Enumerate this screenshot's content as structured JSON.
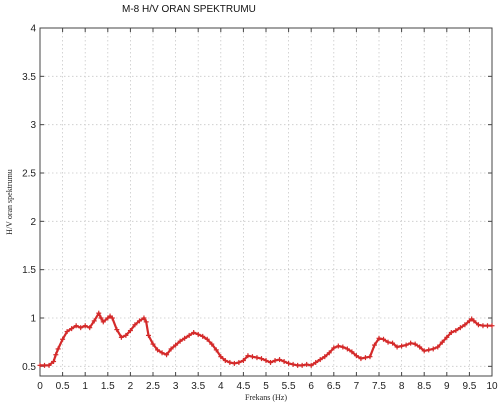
{
  "chart_data": {
    "type": "line",
    "title": "M-8 H/V ORAN SPEKTRUMU",
    "xlabel": "Frekans (Hz)",
    "ylabel": "H/V oran spektrumu",
    "xlim": [
      0,
      10
    ],
    "ylim": [
      0.4,
      4
    ],
    "xticks": [
      0,
      0.5,
      1,
      1.5,
      2,
      2.5,
      3,
      3.5,
      4,
      4.5,
      5,
      5.5,
      6,
      6.5,
      7,
      7.5,
      8,
      8.5,
      9,
      9.5,
      10
    ],
    "yticks": [
      0.5,
      1,
      1.5,
      2,
      2.5,
      3,
      3.5,
      4
    ],
    "grid": true,
    "series": [
      {
        "color": "#d42a2a",
        "marker": "plus",
        "x": [
          0.0,
          0.1,
          0.2,
          0.3,
          0.35,
          0.4,
          0.5,
          0.6,
          0.7,
          0.8,
          0.9,
          1.0,
          1.1,
          1.2,
          1.3,
          1.35,
          1.4,
          1.5,
          1.55,
          1.6,
          1.7,
          1.8,
          1.9,
          2.0,
          2.1,
          2.2,
          2.3,
          2.35,
          2.4,
          2.5,
          2.6,
          2.7,
          2.8,
          2.9,
          3.0,
          3.1,
          3.2,
          3.3,
          3.4,
          3.5,
          3.6,
          3.7,
          3.8,
          3.9,
          4.0,
          4.1,
          4.2,
          4.3,
          4.4,
          4.5,
          4.6,
          4.7,
          4.8,
          4.9,
          5.0,
          5.1,
          5.2,
          5.3,
          5.4,
          5.5,
          5.6,
          5.7,
          5.8,
          5.9,
          6.0,
          6.1,
          6.2,
          6.3,
          6.4,
          6.5,
          6.6,
          6.7,
          6.8,
          6.9,
          7.0,
          7.1,
          7.2,
          7.3,
          7.4,
          7.5,
          7.6,
          7.7,
          7.8,
          7.9,
          8.0,
          8.1,
          8.2,
          8.3,
          8.4,
          8.5,
          8.6,
          8.7,
          8.8,
          8.9,
          9.0,
          9.1,
          9.2,
          9.3,
          9.4,
          9.5,
          9.55,
          9.6,
          9.7,
          9.8,
          9.9,
          10.0
        ],
        "y": [
          0.51,
          0.51,
          0.51,
          0.55,
          0.62,
          0.68,
          0.78,
          0.86,
          0.89,
          0.92,
          0.9,
          0.92,
          0.9,
          0.97,
          1.05,
          1.0,
          0.96,
          1.0,
          1.02,
          1.0,
          0.88,
          0.8,
          0.82,
          0.87,
          0.93,
          0.97,
          1.0,
          0.96,
          0.82,
          0.73,
          0.67,
          0.64,
          0.62,
          0.68,
          0.72,
          0.76,
          0.79,
          0.82,
          0.85,
          0.83,
          0.81,
          0.78,
          0.73,
          0.67,
          0.6,
          0.56,
          0.54,
          0.53,
          0.54,
          0.56,
          0.61,
          0.6,
          0.59,
          0.58,
          0.56,
          0.54,
          0.56,
          0.57,
          0.55,
          0.53,
          0.52,
          0.51,
          0.51,
          0.52,
          0.51,
          0.54,
          0.57,
          0.6,
          0.64,
          0.69,
          0.71,
          0.7,
          0.68,
          0.65,
          0.61,
          0.58,
          0.59,
          0.6,
          0.72,
          0.79,
          0.78,
          0.75,
          0.74,
          0.7,
          0.71,
          0.72,
          0.74,
          0.73,
          0.7,
          0.66,
          0.67,
          0.68,
          0.7,
          0.75,
          0.8,
          0.85,
          0.87,
          0.9,
          0.93,
          0.97,
          0.99,
          0.97,
          0.93,
          0.92,
          0.92,
          0.92
        ]
      }
    ]
  }
}
